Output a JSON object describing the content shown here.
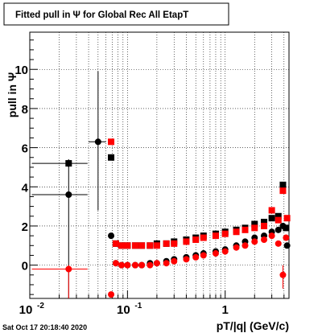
{
  "chart_data": {
    "type": "scatter",
    "title": "Fitted pull in Ψ  for Global Rec All EtapT",
    "xlabel": "pT/|q| (GeV/c)",
    "ylabel": "pull in  Ψ",
    "xscale": "log",
    "xlim": [
      0.01,
      4.5
    ],
    "ylim": [
      -1.7,
      11.9
    ],
    "grid": true,
    "x_tick_labels": [
      {
        "x": 0.01,
        "text": "10",
        "sup": "-2"
      },
      {
        "x": 0.1,
        "text": "10",
        "sup": "-1"
      },
      {
        "x": 1,
        "text": "1",
        "sup": ""
      }
    ],
    "y_ticks": [
      0,
      2,
      4,
      6,
      8,
      10
    ],
    "series": [
      {
        "color": "#000000",
        "marker": "square",
        "points": [
          [
            0.025,
            5.2
          ],
          [
            0.068,
            5.5
          ],
          [
            0.076,
            1.1
          ],
          [
            0.087,
            1.0
          ],
          [
            0.1,
            1.0
          ],
          [
            0.12,
            1.0
          ],
          [
            0.14,
            1.0
          ],
          [
            0.17,
            1.0
          ],
          [
            0.2,
            1.1
          ],
          [
            0.25,
            1.1
          ],
          [
            0.3,
            1.2
          ],
          [
            0.4,
            1.3
          ],
          [
            0.5,
            1.4
          ],
          [
            0.6,
            1.5
          ],
          [
            0.8,
            1.6
          ],
          [
            1.0,
            1.7
          ],
          [
            1.3,
            1.8
          ],
          [
            1.6,
            1.9
          ],
          [
            2.0,
            2.1
          ],
          [
            2.5,
            2.2
          ],
          [
            3.0,
            2.4
          ],
          [
            3.5,
            2.5
          ],
          [
            3.9,
            4.1
          ],
          [
            4.2,
            1.9
          ]
        ]
      },
      {
        "color": "#000000",
        "marker": "circle",
        "points": [
          [
            0.025,
            3.6
          ],
          [
            0.05,
            6.3
          ],
          [
            0.068,
            1.5
          ],
          [
            0.076,
            0.1
          ],
          [
            0.087,
            0.0
          ],
          [
            0.1,
            0.0
          ],
          [
            0.12,
            0.0
          ],
          [
            0.14,
            0.0
          ],
          [
            0.17,
            0.1
          ],
          [
            0.2,
            0.1
          ],
          [
            0.25,
            0.2
          ],
          [
            0.3,
            0.3
          ],
          [
            0.4,
            0.4
          ],
          [
            0.5,
            0.5
          ],
          [
            0.6,
            0.6
          ],
          [
            0.8,
            0.7
          ],
          [
            1.0,
            0.8
          ],
          [
            1.3,
            1.0
          ],
          [
            1.6,
            1.2
          ],
          [
            2.0,
            1.4
          ],
          [
            2.5,
            1.5
          ],
          [
            3.0,
            1.7
          ],
          [
            3.5,
            1.8
          ],
          [
            3.9,
            2.0
          ],
          [
            4.3,
            1.0
          ]
        ]
      },
      {
        "color": "#ff0000",
        "marker": "square",
        "points": [
          [
            0.068,
            6.3
          ],
          [
            0.076,
            1.1
          ],
          [
            0.087,
            1.0
          ],
          [
            0.1,
            1.0
          ],
          [
            0.12,
            1.0
          ],
          [
            0.14,
            1.0
          ],
          [
            0.17,
            1.0
          ],
          [
            0.2,
            1.0
          ],
          [
            0.25,
            1.1
          ],
          [
            0.3,
            1.1
          ],
          [
            0.4,
            1.2
          ],
          [
            0.5,
            1.3
          ],
          [
            0.6,
            1.4
          ],
          [
            0.8,
            1.5
          ],
          [
            1.0,
            1.6
          ],
          [
            1.3,
            1.7
          ],
          [
            1.6,
            1.8
          ],
          [
            2.0,
            1.9
          ],
          [
            2.5,
            2.0
          ],
          [
            3.0,
            2.8
          ],
          [
            3.5,
            2.3
          ],
          [
            3.9,
            3.8
          ],
          [
            4.3,
            2.4
          ]
        ]
      },
      {
        "color": "#ff0000",
        "marker": "circle",
        "points": [
          [
            0.025,
            -0.2
          ],
          [
            0.068,
            -1.5
          ],
          [
            0.076,
            0.1
          ],
          [
            0.087,
            0.0
          ],
          [
            0.1,
            0.0
          ],
          [
            0.12,
            0.0
          ],
          [
            0.14,
            0.0
          ],
          [
            0.17,
            0.0
          ],
          [
            0.2,
            0.1
          ],
          [
            0.25,
            0.1
          ],
          [
            0.3,
            0.2
          ],
          [
            0.4,
            0.3
          ],
          [
            0.5,
            0.4
          ],
          [
            0.6,
            0.5
          ],
          [
            0.8,
            0.6
          ],
          [
            1.0,
            0.7
          ],
          [
            1.3,
            0.9
          ],
          [
            1.6,
            1.0
          ],
          [
            2.0,
            1.2
          ],
          [
            2.5,
            1.3
          ],
          [
            3.0,
            1.5
          ],
          [
            3.5,
            1.1
          ],
          [
            3.9,
            -0.5
          ],
          [
            4.2,
            1.4
          ]
        ]
      }
    ],
    "error_bars": [
      {
        "x": 0.025,
        "y": 5.2,
        "xlo": 0.0105,
        "xhi": 0.039,
        "ylo": 5.0,
        "yhi": 5.4,
        "color": "#000000"
      },
      {
        "x": 0.025,
        "y": 3.6,
        "xlo": 0.0105,
        "xhi": 0.039,
        "ylo": -1.7,
        "yhi": 5.4,
        "color": "#000000"
      },
      {
        "x": 0.05,
        "y": 6.3,
        "xlo": 0.04,
        "xhi": 0.06,
        "ylo": 2.8,
        "yhi": 9.9,
        "color": "#000000"
      },
      {
        "x": 0.025,
        "y": -0.2,
        "xlo": 0.0105,
        "xhi": 0.039,
        "ylo": -1.7,
        "yhi": 0.0,
        "color": "#ff0000"
      },
      {
        "x": 3.9,
        "y": -0.5,
        "xlo": 3.9,
        "xhi": 3.9,
        "ylo": -1.2,
        "yhi": 0.0,
        "color": "#ff0000"
      }
    ]
  },
  "footer": {
    "timestamp": "Sat Oct 17 20:18:40 2020"
  }
}
